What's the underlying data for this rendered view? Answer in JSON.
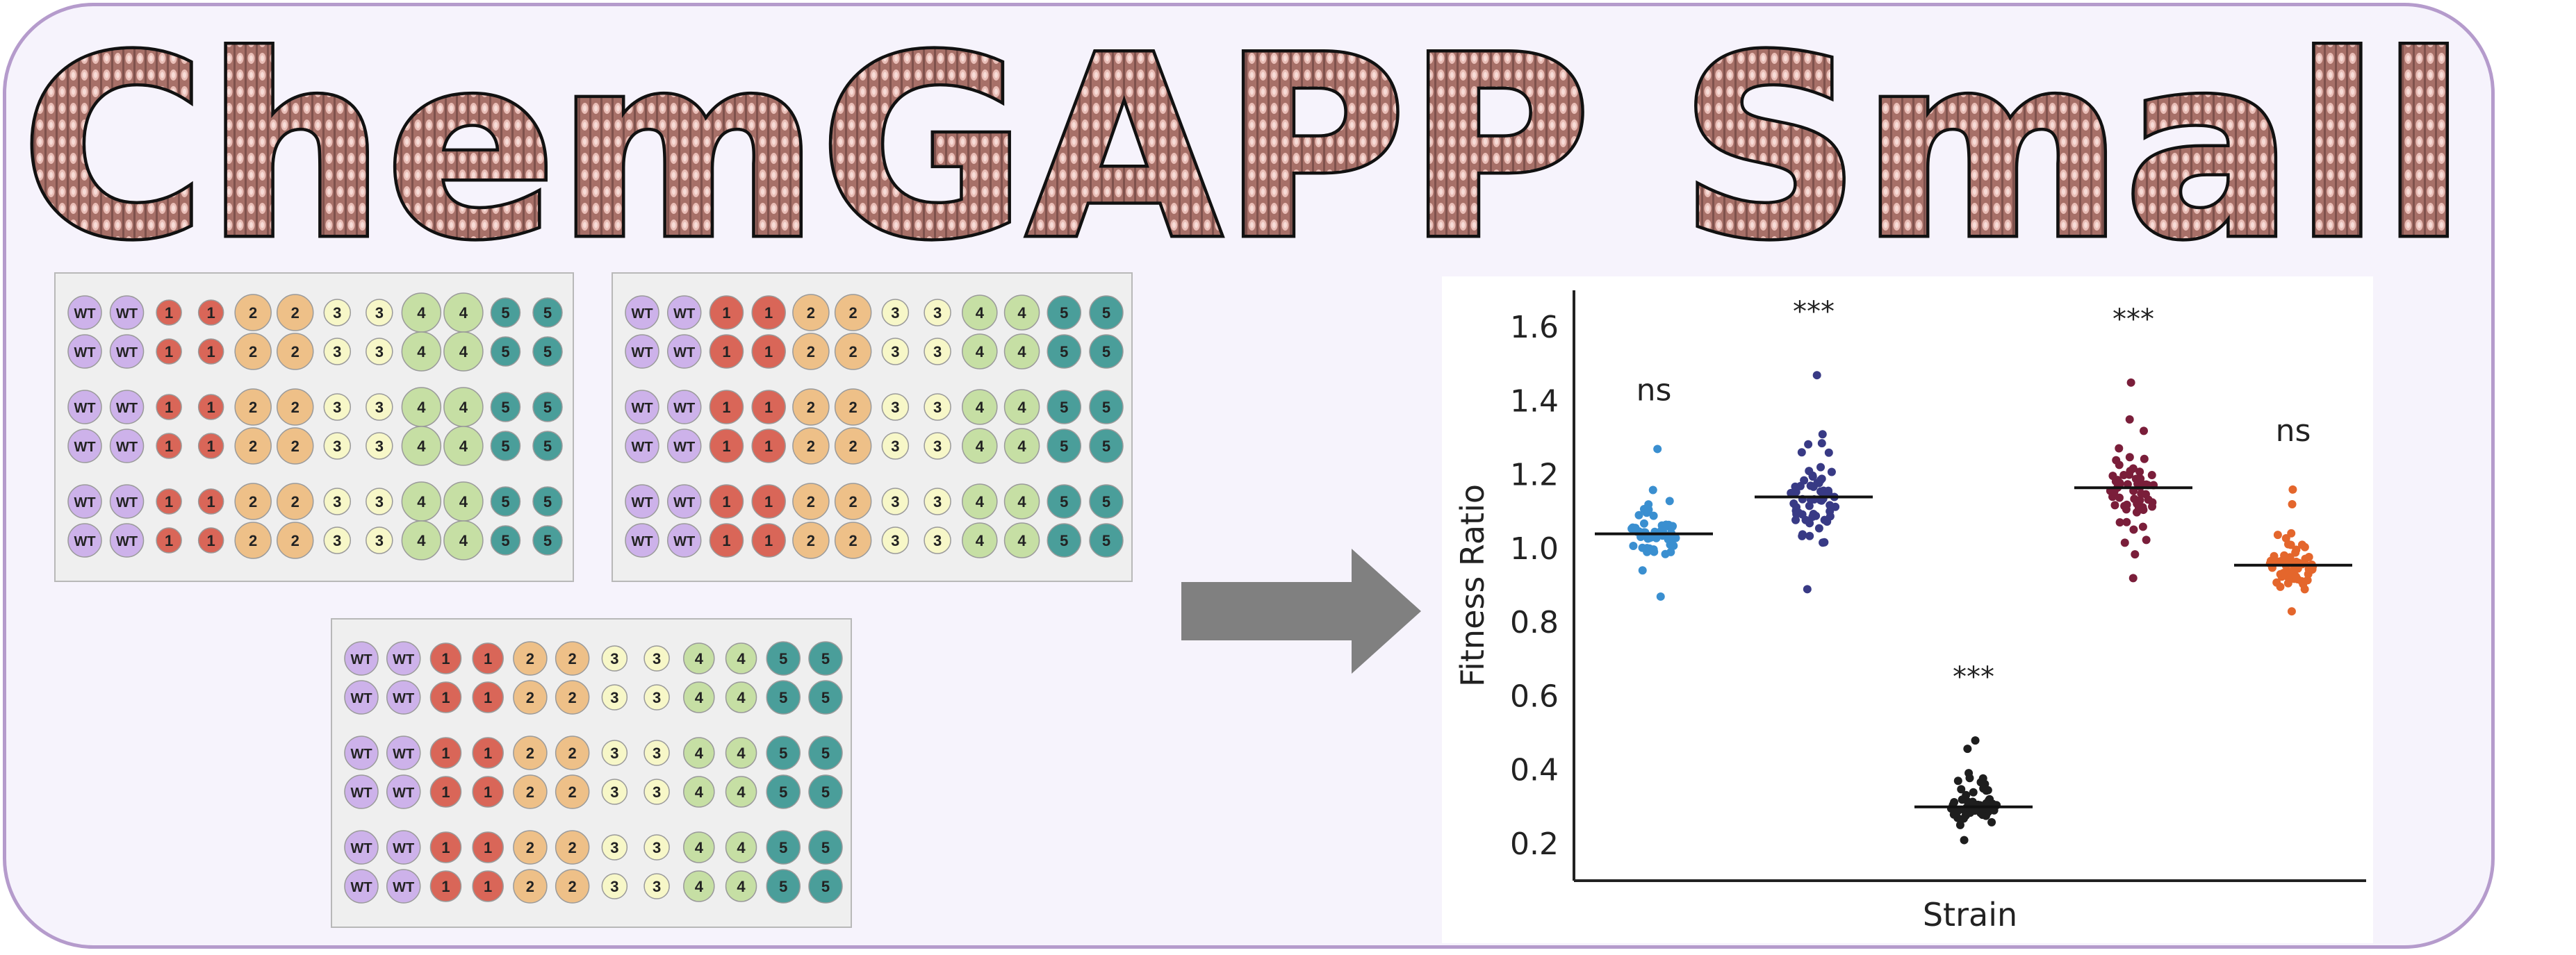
{
  "title": {
    "text": "ChemGAPP Small",
    "fill_color": "#b07a72",
    "stripe_color": "#8e5f59",
    "dot_color": "#f3cfc9"
  },
  "colors": {
    "frame_border": "#b59bcc",
    "frame_fill": "#f6f3fc",
    "plate_fill": "#efefef",
    "arrow": "#808080"
  },
  "strain_labels": [
    "WT",
    "1",
    "2",
    "3",
    "4",
    "5"
  ],
  "strain_colors": {
    "WT": "#cdb2ea",
    "1": "#d96658",
    "2": "#eec088",
    "3": "#f7f7c8",
    "4": "#c6dfa4",
    "5": "#4a9e9a"
  },
  "plates": [
    {
      "name": "plate-top-left",
      "rows": 6
    },
    {
      "name": "plate-top-right",
      "rows": 6
    },
    {
      "name": "plate-bottom",
      "rows": 6
    }
  ],
  "chart_data": {
    "type": "scatter",
    "ylabel": "Fitness Ratio",
    "xlabel": "Strain",
    "ylim": [
      0.1,
      1.7
    ],
    "yticks": [
      "0.2",
      "0.4",
      "0.6",
      "0.8",
      "1.0",
      "1.2",
      "1.4",
      "1.6"
    ],
    "grid": false,
    "series": [
      {
        "color": "#3a8fd0",
        "median": 1.04,
        "min": 0.87,
        "max": 1.27,
        "significance": "ns"
      },
      {
        "color": "#383a85",
        "median": 1.14,
        "min": 0.89,
        "max": 1.47,
        "significance": "***"
      },
      {
        "color": "#1e1e1e",
        "median": 0.3,
        "min": 0.21,
        "max": 0.48,
        "significance": "***"
      },
      {
        "color": "#7a1e3a",
        "median": 1.165,
        "min": 0.92,
        "max": 1.45,
        "significance": "***"
      },
      {
        "color": "#e4662c",
        "median": 0.955,
        "min": 0.83,
        "max": 1.16,
        "significance": "ns"
      }
    ]
  }
}
